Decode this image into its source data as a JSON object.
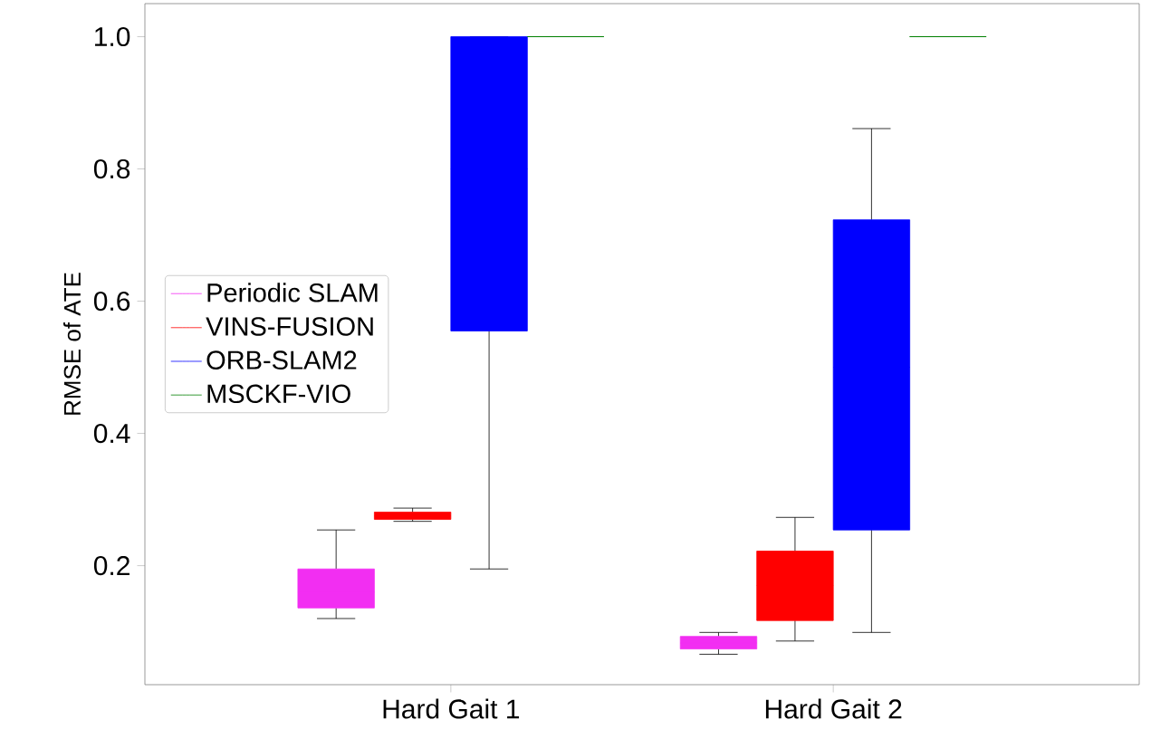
{
  "chart_data": {
    "type": "box",
    "ylabel": "RMSE of ATE",
    "categories": [
      "Hard Gait 1",
      "Hard Gait 2"
    ],
    "ylim": [
      0.02,
      1.05
    ],
    "yticks": [
      {
        "value": 0.2,
        "label": "0.2"
      },
      {
        "value": 0.4,
        "label": "0.4"
      },
      {
        "value": 0.6,
        "label": "0.6"
      },
      {
        "value": 0.8,
        "label": "0.8"
      },
      {
        "value": 1.0,
        "label": "1.0"
      }
    ],
    "legend": "left",
    "grid": false,
    "series": [
      {
        "name": "Periodic SLAM",
        "color": "#f22ef2",
        "boxes": [
          {
            "low": 0.12,
            "q1": 0.136,
            "median": 0.16,
            "q3": 0.195,
            "high": 0.254
          },
          {
            "low": 0.066,
            "q1": 0.074,
            "median": 0.083,
            "q3": 0.093,
            "high": 0.099
          }
        ]
      },
      {
        "name": "VINS-FUSION",
        "color": "#ff0000",
        "boxes": [
          {
            "low": 0.267,
            "q1": 0.27,
            "median": 0.275,
            "q3": 0.281,
            "high": 0.287
          },
          {
            "low": 0.086,
            "q1": 0.117,
            "median": 0.17,
            "q3": 0.222,
            "high": 0.273
          }
        ]
      },
      {
        "name": "ORB-SLAM2",
        "color": "#0000ff",
        "boxes": [
          {
            "low": 0.195,
            "q1": 0.555,
            "median": 0.8,
            "q3": 1.0,
            "high": 1.0
          },
          {
            "low": 0.099,
            "q1": 0.254,
            "median": 0.5,
            "q3": 0.723,
            "high": 0.861
          }
        ]
      },
      {
        "name": "MSCKF-VIO",
        "color": "#008000",
        "boxes": [
          {
            "low": 1.0,
            "q1": 1.0,
            "median": 1.0,
            "q3": 1.0,
            "high": 1.0
          },
          {
            "low": 1.0,
            "q1": 1.0,
            "median": 1.0,
            "q3": 1.0,
            "high": 1.0
          }
        ]
      }
    ]
  }
}
